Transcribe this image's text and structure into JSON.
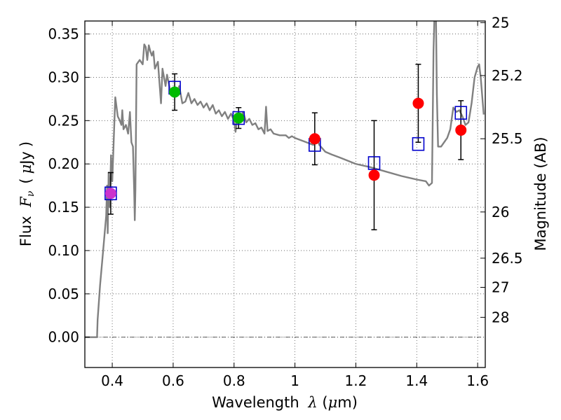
{
  "chart_data": {
    "type": "scatter",
    "xlabel": {
      "prefix": "Wavelength",
      "symbol": "λ",
      "unit_open": "(",
      "unit_mu": "μ",
      "unit_rest": "m)"
    },
    "ylabel": {
      "prefix": "Flux",
      "symbol": "F",
      "sub": "ν",
      "unit_open": "(",
      "unit_mu": "μ",
      "unit_rest": "Jy",
      "unit_close": ")"
    },
    "y2label": "Magnitude (AB)",
    "xlim": [
      0.31,
      1.625
    ],
    "ylim": [
      -0.035,
      0.365
    ],
    "grid": true,
    "xticks": [
      {
        "v": 0.4,
        "label": "0.4"
      },
      {
        "v": 0.6,
        "label": "0.6"
      },
      {
        "v": 0.8,
        "label": "0.8"
      },
      {
        "v": 1.0,
        "label": "1"
      },
      {
        "v": 1.2,
        "label": "1.2"
      },
      {
        "v": 1.4,
        "label": "1.4"
      },
      {
        "v": 1.6,
        "label": "1.6"
      }
    ],
    "yticks": [
      {
        "v": 0.0,
        "label": "0.00"
      },
      {
        "v": 0.05,
        "label": "0.05"
      },
      {
        "v": 0.1,
        "label": "0.10"
      },
      {
        "v": 0.15,
        "label": "0.15"
      },
      {
        "v": 0.2,
        "label": "0.20"
      },
      {
        "v": 0.25,
        "label": "0.25"
      },
      {
        "v": 0.3,
        "label": "0.30"
      },
      {
        "v": 0.35,
        "label": "0.35"
      }
    ],
    "y2ticks": [
      {
        "mag": 25,
        "label": "25"
      },
      {
        "mag": 25.2,
        "label": "25.2"
      },
      {
        "mag": 25.5,
        "label": "25.5"
      },
      {
        "mag": 26,
        "label": "26"
      },
      {
        "mag": 26.5,
        "label": "26.5"
      },
      {
        "mag": 27,
        "label": "27"
      },
      {
        "mag": 28,
        "label": "28"
      }
    ],
    "zero_line": 0.0,
    "colors": {
      "sed": "#808080",
      "model": "#0000cc",
      "magenta": "#cc33cc",
      "green": "#00bb00",
      "red": "#ff0000",
      "errorbar": "#000000",
      "grid": "#555555"
    },
    "sed_model": [
      [
        0.31,
        0.0
      ],
      [
        0.35,
        0.0
      ],
      [
        0.352,
        0.02
      ],
      [
        0.36,
        0.06
      ],
      [
        0.37,
        0.1
      ],
      [
        0.38,
        0.14
      ],
      [
        0.383,
        0.175
      ],
      [
        0.385,
        0.12
      ],
      [
        0.388,
        0.19
      ],
      [
        0.392,
        0.15
      ],
      [
        0.396,
        0.21
      ],
      [
        0.4,
        0.18
      ],
      [
        0.405,
        0.23
      ],
      [
        0.41,
        0.277
      ],
      [
        0.418,
        0.255
      ],
      [
        0.425,
        0.25
      ],
      [
        0.43,
        0.245
      ],
      [
        0.433,
        0.262
      ],
      [
        0.437,
        0.24
      ],
      [
        0.445,
        0.245
      ],
      [
        0.452,
        0.235
      ],
      [
        0.458,
        0.26
      ],
      [
        0.463,
        0.225
      ],
      [
        0.468,
        0.22
      ],
      [
        0.472,
        0.17
      ],
      [
        0.474,
        0.135
      ],
      [
        0.476,
        0.17
      ],
      [
        0.48,
        0.315
      ],
      [
        0.49,
        0.32
      ],
      [
        0.5,
        0.315
      ],
      [
        0.505,
        0.338
      ],
      [
        0.51,
        0.335
      ],
      [
        0.515,
        0.32
      ],
      [
        0.52,
        0.337
      ],
      [
        0.525,
        0.33
      ],
      [
        0.53,
        0.325
      ],
      [
        0.535,
        0.33
      ],
      [
        0.54,
        0.31
      ],
      [
        0.55,
        0.318
      ],
      [
        0.56,
        0.27
      ],
      [
        0.565,
        0.31
      ],
      [
        0.575,
        0.29
      ],
      [
        0.58,
        0.303
      ],
      [
        0.59,
        0.285
      ],
      [
        0.6,
        0.283
      ],
      [
        0.61,
        0.28
      ],
      [
        0.62,
        0.29
      ],
      [
        0.63,
        0.27
      ],
      [
        0.64,
        0.272
      ],
      [
        0.65,
        0.282
      ],
      [
        0.66,
        0.27
      ],
      [
        0.67,
        0.275
      ],
      [
        0.68,
        0.268
      ],
      [
        0.69,
        0.272
      ],
      [
        0.7,
        0.265
      ],
      [
        0.71,
        0.27
      ],
      [
        0.72,
        0.262
      ],
      [
        0.73,
        0.268
      ],
      [
        0.74,
        0.258
      ],
      [
        0.75,
        0.262
      ],
      [
        0.76,
        0.255
      ],
      [
        0.77,
        0.26
      ],
      [
        0.78,
        0.252
      ],
      [
        0.79,
        0.258
      ],
      [
        0.8,
        0.25
      ],
      [
        0.805,
        0.237
      ],
      [
        0.81,
        0.252
      ],
      [
        0.82,
        0.25
      ],
      [
        0.83,
        0.26
      ],
      [
        0.84,
        0.248
      ],
      [
        0.85,
        0.252
      ],
      [
        0.86,
        0.245
      ],
      [
        0.87,
        0.247
      ],
      [
        0.88,
        0.24
      ],
      [
        0.89,
        0.242
      ],
      [
        0.9,
        0.235
      ],
      [
        0.905,
        0.266
      ],
      [
        0.91,
        0.238
      ],
      [
        0.92,
        0.24
      ],
      [
        0.93,
        0.235
      ],
      [
        0.95,
        0.233
      ],
      [
        0.97,
        0.233
      ],
      [
        0.98,
        0.23
      ],
      [
        0.99,
        0.232
      ],
      [
        1.0,
        0.23
      ],
      [
        1.03,
        0.226
      ],
      [
        1.06,
        0.222
      ],
      [
        1.075,
        0.228
      ],
      [
        1.08,
        0.222
      ],
      [
        1.1,
        0.214
      ],
      [
        1.12,
        0.211
      ],
      [
        1.15,
        0.207
      ],
      [
        1.2,
        0.2
      ],
      [
        1.25,
        0.196
      ],
      [
        1.3,
        0.191
      ],
      [
        1.35,
        0.186
      ],
      [
        1.4,
        0.182
      ],
      [
        1.43,
        0.18
      ],
      [
        1.44,
        0.175
      ],
      [
        1.45,
        0.178
      ],
      [
        1.452,
        0.24
      ],
      [
        1.455,
        0.33
      ],
      [
        1.458,
        0.37
      ],
      [
        1.463,
        0.37
      ],
      [
        1.466,
        0.28
      ],
      [
        1.47,
        0.22
      ],
      [
        1.48,
        0.22
      ],
      [
        1.5,
        0.23
      ],
      [
        1.51,
        0.24
      ],
      [
        1.52,
        0.265
      ],
      [
        1.53,
        0.26
      ],
      [
        1.54,
        0.262
      ],
      [
        1.55,
        0.255
      ],
      [
        1.56,
        0.245
      ],
      [
        1.57,
        0.248
      ],
      [
        1.58,
        0.27
      ],
      [
        1.59,
        0.3
      ],
      [
        1.6,
        0.312
      ],
      [
        1.605,
        0.315
      ],
      [
        1.61,
        0.3
      ],
      [
        1.62,
        0.257
      ]
    ],
    "model_points": [
      {
        "x": 0.395,
        "y": 0.166
      },
      {
        "x": 0.605,
        "y": 0.288
      },
      {
        "x": 0.815,
        "y": 0.253
      },
      {
        "x": 1.065,
        "y": 0.222
      },
      {
        "x": 1.26,
        "y": 0.201
      },
      {
        "x": 1.405,
        "y": 0.223
      },
      {
        "x": 1.545,
        "y": 0.259
      }
    ],
    "measured_points": [
      {
        "x": 0.395,
        "y": 0.166,
        "err": 0.024,
        "color": "#cc33cc"
      },
      {
        "x": 0.605,
        "y": 0.283,
        "err": 0.021,
        "color": "#00bb00"
      },
      {
        "x": 0.815,
        "y": 0.253,
        "err": 0.012,
        "color": "#00bb00"
      },
      {
        "x": 1.065,
        "y": 0.229,
        "err": 0.03,
        "color": "#ff0000"
      },
      {
        "x": 1.26,
        "y": 0.187,
        "err": 0.063,
        "color": "#ff0000"
      },
      {
        "x": 1.405,
        "y": 0.27,
        "err": 0.045,
        "color": "#ff0000"
      },
      {
        "x": 1.545,
        "y": 0.239,
        "err": 0.034,
        "color": "#ff0000"
      }
    ]
  }
}
